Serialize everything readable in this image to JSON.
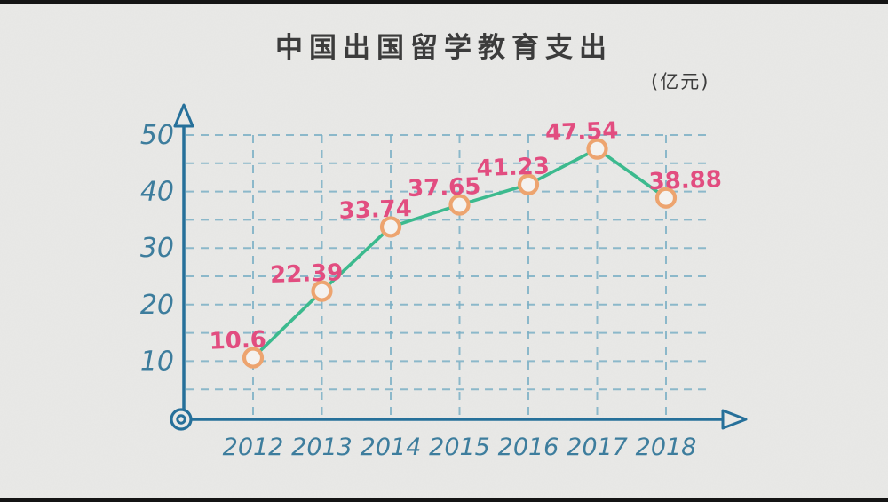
{
  "page": {
    "title": "中国出国留学教育支出",
    "unit_label": "(亿元)"
  },
  "colors": {
    "background": "#e9e9e7",
    "letterbox": "#141414",
    "axis": "#26709a",
    "tick_label": "#3d7d9d",
    "grid": "#7cb0c6",
    "line": "#3cba8e",
    "marker_stroke": "#eda46f",
    "marker_fill": "#f4f2ef",
    "value_label": "#e24d80",
    "title_text": "#3c3c3c"
  },
  "chart_data": {
    "type": "line",
    "title": "中国出国留学教育支出",
    "unit": "亿元",
    "categories": [
      "2012",
      "2013",
      "2014",
      "2015",
      "2016",
      "2017",
      "2018"
    ],
    "values": [
      10.6,
      22.39,
      33.74,
      37.65,
      41.23,
      47.54,
      38.88
    ],
    "point_labels": [
      "10.6",
      "22.39",
      "33.74",
      "37.65",
      "41.23",
      "47.54",
      "38.88"
    ],
    "label_side": [
      "left",
      "left",
      "left",
      "left",
      "left",
      "left",
      "right"
    ],
    "y_ticks": [
      10,
      20,
      30,
      40,
      50
    ],
    "ylim": [
      0,
      50
    ],
    "grid": "dashed",
    "grid_step": 5,
    "legend": "none",
    "xlabel": "",
    "ylabel": ""
  }
}
